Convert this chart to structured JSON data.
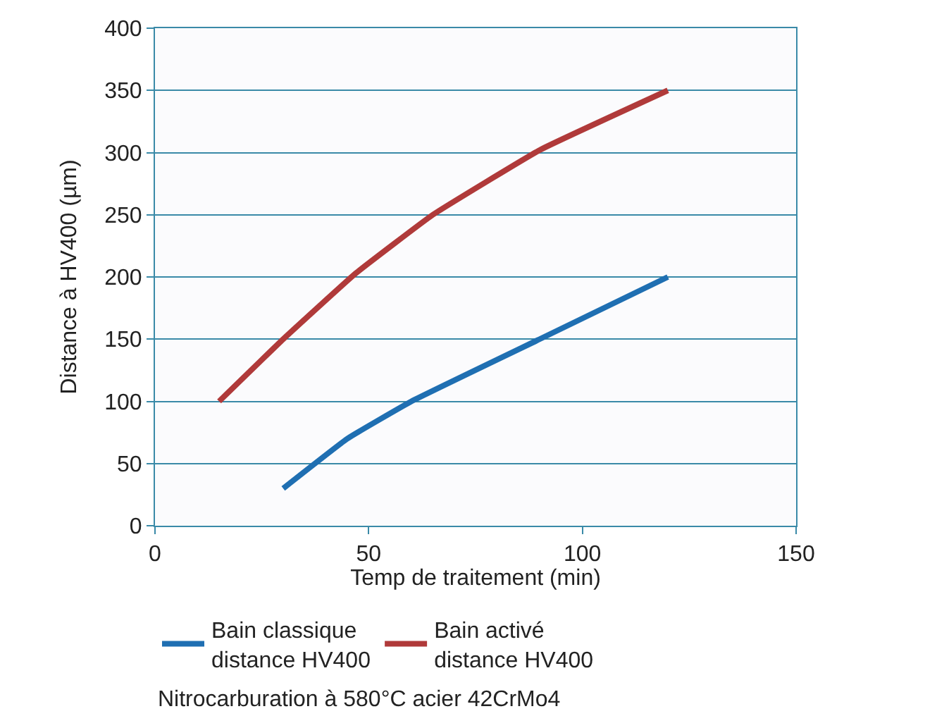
{
  "chart_data": {
    "type": "line",
    "xlabel": "Temp de traitement (min)",
    "ylabel": "Distance à HV400 (µm)",
    "xlim": [
      0,
      150
    ],
    "xticks": [
      0,
      50,
      100,
      150
    ],
    "ylim": [
      0,
      400
    ],
    "yticks": [
      0,
      50,
      100,
      150,
      200,
      250,
      300,
      350,
      400
    ],
    "grid": "y",
    "legend": "bottom",
    "marker": "none",
    "line_style": "solid",
    "series": [
      {
        "name": "Bain classique\ndistance HV400",
        "color": "#1f6fb2",
        "x": [
          30,
          45,
          60,
          90,
          120
        ],
        "values": [
          30,
          70,
          100,
          150,
          200
        ]
      },
      {
        "name": "Bain activé\ndistance HV400",
        "color": "#b03a3a",
        "x": [
          15,
          30,
          47,
          65,
          90,
          120
        ],
        "values": [
          100,
          150,
          203,
          250,
          302,
          350
        ]
      }
    ],
    "annotations": [
      "Nitrocarburation à 580°C acier 42CrMo4"
    ]
  }
}
